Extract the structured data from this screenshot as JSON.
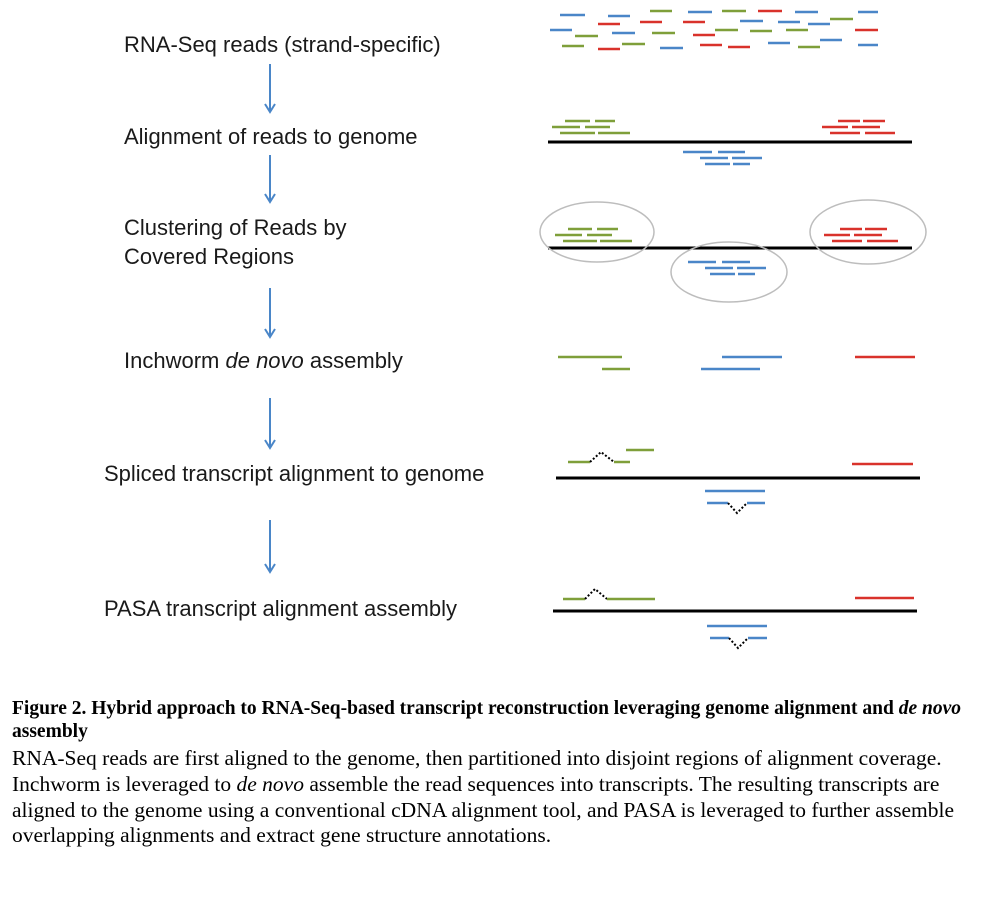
{
  "steps": [
    {
      "text": "RNA-Seq reads (strand-specific)"
    },
    {
      "text": "Alignment of reads to genome"
    },
    {
      "text_line1": "Clustering of Reads by",
      "text_line2": "Covered Regions"
    },
    {
      "text_before": "Inchworm ",
      "text_italic": "de novo",
      "text_after": " assembly"
    },
    {
      "text": "Spliced transcript alignment to genome"
    },
    {
      "text": "PASA transcript alignment assembly"
    }
  ],
  "colors": {
    "read_green": "#7f9f3a",
    "read_red": "#d9322b",
    "read_blue": "#4a86c8",
    "arrow": "#4a86c8",
    "genome_line": "#000000",
    "cluster_ellipse": "#bdbdbd"
  },
  "caption": {
    "title_part1": "Figure 2. Hybrid approach to RNA-Seq-based transcript reconstruction leveraging genome alignment and ",
    "title_italic": "de novo",
    "title_part2": " assembly",
    "body_part1": "RNA-Seq reads are first aligned to the genome, then partitioned into disjoint regions of alignment coverage. Inchworm is leveraged to ",
    "body_italic": "de novo",
    "body_part2": " assemble the read sequences into transcripts. The resulting transcripts are aligned to the genome using a conventional cDNA alignment tool, and PASA is leveraged to further assemble overlapping alignments and extract gene structure annotations."
  }
}
